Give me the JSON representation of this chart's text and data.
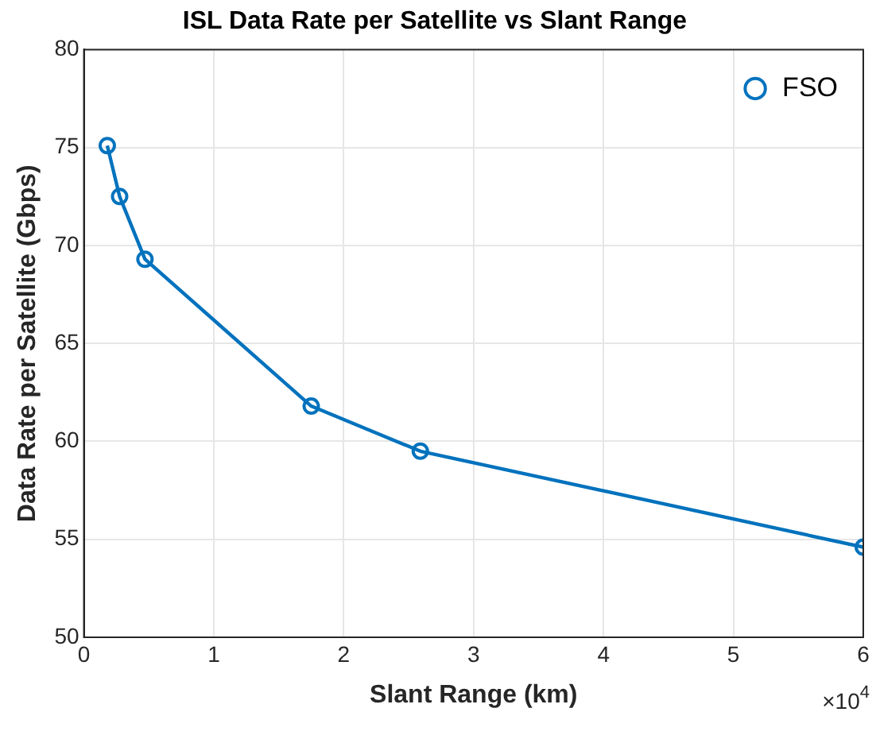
{
  "chart_data": {
    "type": "line",
    "title": "ISL Data Rate per Satellite vs Slant Range",
    "xlabel": "Slant Range (km)",
    "ylabel": "Data Rate per Satellite (Gbps)",
    "x": [
      0.18,
      0.275,
      0.47,
      1.75,
      2.59,
      6
    ],
    "series": [
      {
        "name": "FSO",
        "color": "#0072bd",
        "values": [
          75.1,
          72.5,
          69.3,
          61.8,
          59.5,
          54.6
        ]
      }
    ],
    "xlim": [
      0,
      6
    ],
    "xticks": [
      0,
      1,
      2,
      3,
      4,
      5,
      6
    ],
    "ylim": [
      50,
      80
    ],
    "yticks": [
      50,
      55,
      60,
      65,
      70,
      75,
      80
    ],
    "annotations": [
      "×10$^{4}$"
    ],
    "grid": true,
    "legend": "top right",
    "marker": "circle",
    "line_style": "solid"
  }
}
